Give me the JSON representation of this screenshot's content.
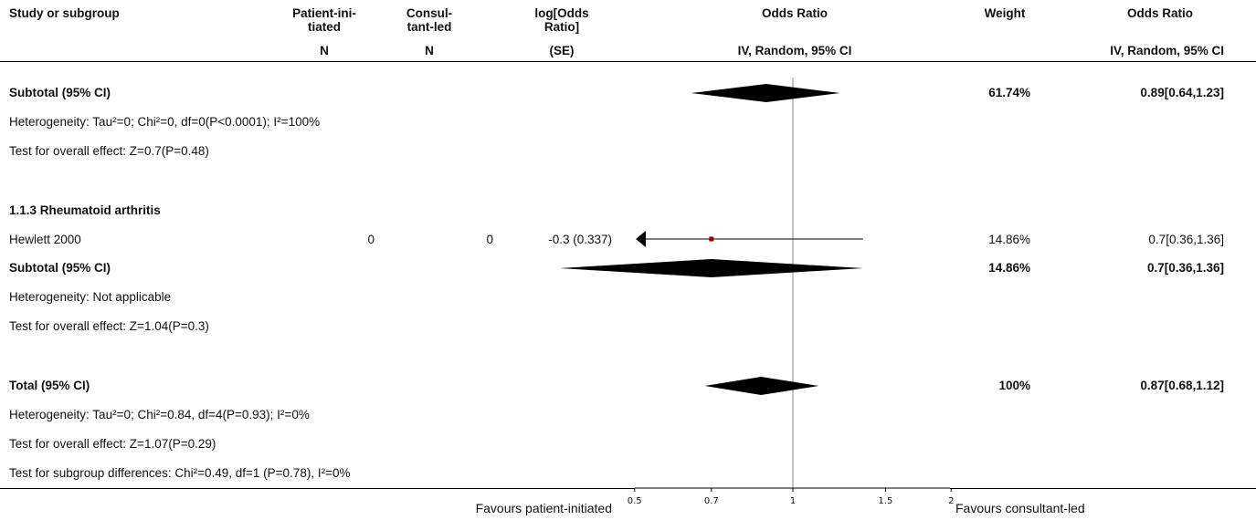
{
  "header": {
    "study": "Study or subgroup",
    "group1": [
      "Patient-ini-",
      "tiated"
    ],
    "group2": [
      "Consul-",
      "tant-led"
    ],
    "est": [
      "log[Odds",
      "Ratio]"
    ],
    "plot_title": "Odds Ratio",
    "weight": "Weight",
    "or_title": "Odds Ratio",
    "n1": "N",
    "n2": "N",
    "se": "(SE)",
    "plot_method": "IV, Random, 95% CI",
    "or_method": "IV, Random, 95% CI"
  },
  "rows": {
    "sub1_total": {
      "label": "Subtotal (95% CI)",
      "weight": "61.74%",
      "ci": "0.89[0.64,1.23]"
    },
    "sub1_het": "Heterogeneity: Tau²=0; Chi²=0, df=0(P<0.0001); I²=100%",
    "sub1_test": "Test for overall effect: Z=0.7(P=0.48)",
    "sub2_heading": "1.1.3 Rheumatoid arthritis",
    "study1": {
      "label": "Hewlett 2000",
      "n1": "0",
      "n2": "0",
      "est": "-0.3 (0.337)",
      "weight": "14.86%",
      "ci": "0.7[0.36,1.36]"
    },
    "sub2_total": {
      "label": "Subtotal (95% CI)",
      "weight": "14.86%",
      "ci": "0.7[0.36,1.36]"
    },
    "sub2_het": "Heterogeneity: Not applicable",
    "sub2_test": "Test for overall effect: Z=1.04(P=0.3)",
    "total": {
      "label": "Total (95% CI)",
      "weight": "100%",
      "ci": "0.87[0.68,1.12]"
    },
    "total_het": "Heterogeneity: Tau²=0; Chi²=0.84, df=4(P=0.93); I²=0%",
    "total_test": "Test for overall effect: Z=1.07(P=0.29)",
    "subgroup_test": "Test for subgroup differences: Chi²=0.49, df=1 (P=0.78), I²=0%"
  },
  "footer": {
    "favours_left": "Favours patient-initiated",
    "favours_right": "Favours consultant-led"
  },
  "chart_data": {
    "type": "forest",
    "title": "Odds Ratio",
    "xlabel": "IV, Random, 95% CI",
    "x_scale": "log",
    "xlim": [
      0.5,
      2
    ],
    "ticks": [
      0.5,
      0.7,
      1,
      1.5,
      2
    ],
    "tick_labels": [
      "0.5",
      "0.7",
      "1",
      "1.5",
      "2"
    ],
    "reference_line": 1,
    "colors": {
      "point": "#8b0000",
      "diamond": "#000000"
    },
    "items": [
      {
        "key": "sub1_total",
        "kind": "diamond",
        "estimate": 0.89,
        "lower": 0.64,
        "upper": 1.23
      },
      {
        "key": "study1",
        "kind": "study",
        "estimate": 0.7,
        "lower": 0.36,
        "upper": 1.36,
        "lower_arrow": true
      },
      {
        "key": "sub2_total",
        "kind": "diamond",
        "estimate": 0.7,
        "lower": 0.36,
        "upper": 1.36
      },
      {
        "key": "total",
        "kind": "diamond",
        "estimate": 0.87,
        "lower": 0.68,
        "upper": 1.12
      }
    ]
  }
}
